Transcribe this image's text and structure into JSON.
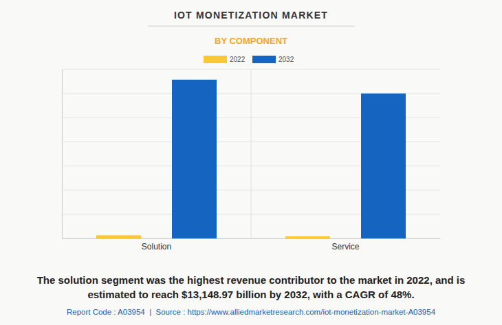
{
  "chart_data": {
    "type": "bar",
    "title": "IOT MONETIZATION MARKET",
    "subtitle": "BY COMPONENT",
    "categories": [
      "Solution",
      "Service"
    ],
    "series": [
      {
        "name": "2022",
        "color": "#f9c933",
        "values": [
          260,
          170
        ]
      },
      {
        "name": "2032",
        "color": "#1565c0",
        "values": [
          13148.97,
          12000
        ]
      }
    ],
    "ylim": [
      0,
      14000
    ],
    "yticks": [
      0,
      2000,
      4000,
      6000,
      8000,
      10000,
      12000,
      14000
    ],
    "grid": true,
    "legend": "top",
    "tick_labels": "x",
    "annotations": [
      "The solution segment was the highest revenue contributor to the market in 2022, and is",
      "estimated to reach $13,148.97 billion by 2032, with a CAGR of 48%."
    ],
    "footer": "Report Code : A03954  |  Source : https://www.alliedmarketresearch.com/iot-monetization-market-A03954"
  }
}
